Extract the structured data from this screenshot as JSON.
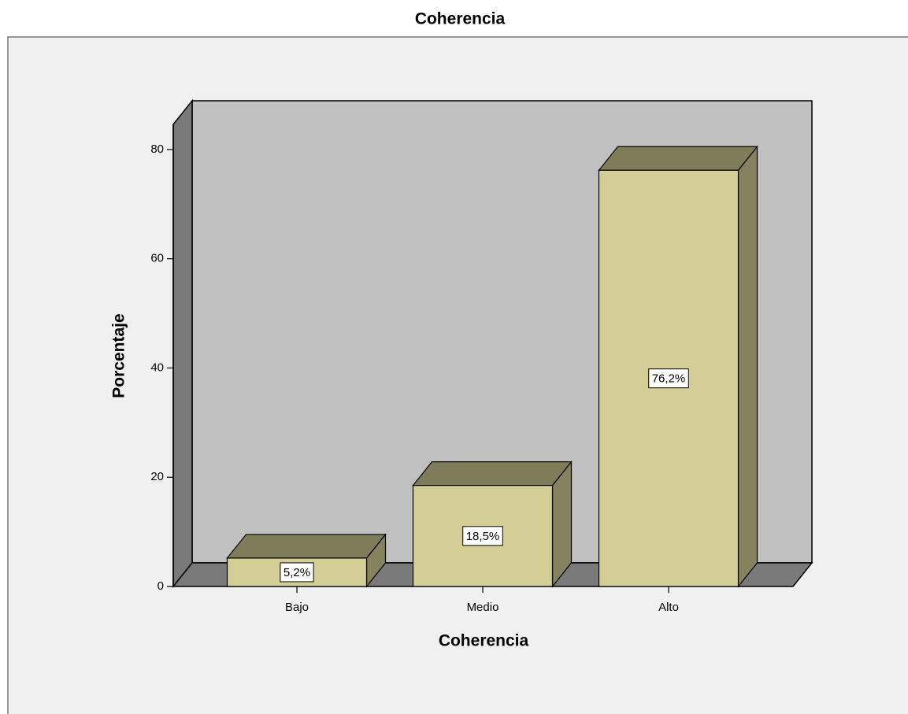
{
  "chart_data": {
    "type": "bar3d",
    "title": "Coherencia",
    "categories": [
      "Bajo",
      "Medio",
      "Alto"
    ],
    "values": [
      5.2,
      18.5,
      76.2
    ],
    "value_labels": [
      "5,2%",
      "18,5%",
      "76,2%"
    ],
    "color": "#d3ce96",
    "x_label": "Coherencia",
    "y_label": "Porcentaje",
    "ylim": [
      0,
      84.6
    ],
    "yticks": [
      0,
      20,
      40,
      60,
      80
    ]
  }
}
